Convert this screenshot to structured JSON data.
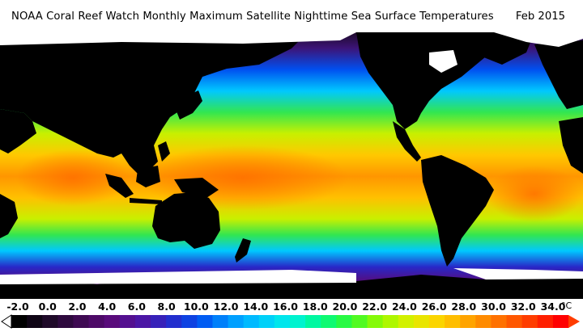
{
  "header": {
    "title": "NOAA Coral Reef Watch Monthly Maximum Satellite Nighttime Sea Surface Temperatures",
    "date": "Feb 2015"
  },
  "legend": {
    "unit": "°C",
    "ticks": [
      "-2.0",
      "0.0",
      "2.0",
      "4.0",
      "6.0",
      "8.0",
      "10.0",
      "12.0",
      "14.0",
      "16.0",
      "18.0",
      "20.0",
      "22.0",
      "24.0",
      "26.0",
      "28.0",
      "30.0",
      "32.0",
      "34.0"
    ],
    "range": [
      -2,
      34
    ],
    "colors": [
      "#000000",
      "#1e0a28",
      "#3c0a50",
      "#5a0a78",
      "#5014a0",
      "#2828c8",
      "#0050f0",
      "#0096ff",
      "#00c8ff",
      "#00f0e6",
      "#00fa8c",
      "#32fa32",
      "#96fa00",
      "#dcf000",
      "#ffd200",
      "#ffa000",
      "#ff6e00",
      "#ff3c00",
      "#ff0000"
    ]
  },
  "map": {
    "land_color": "#000000",
    "ice_color": "#ffffff"
  }
}
